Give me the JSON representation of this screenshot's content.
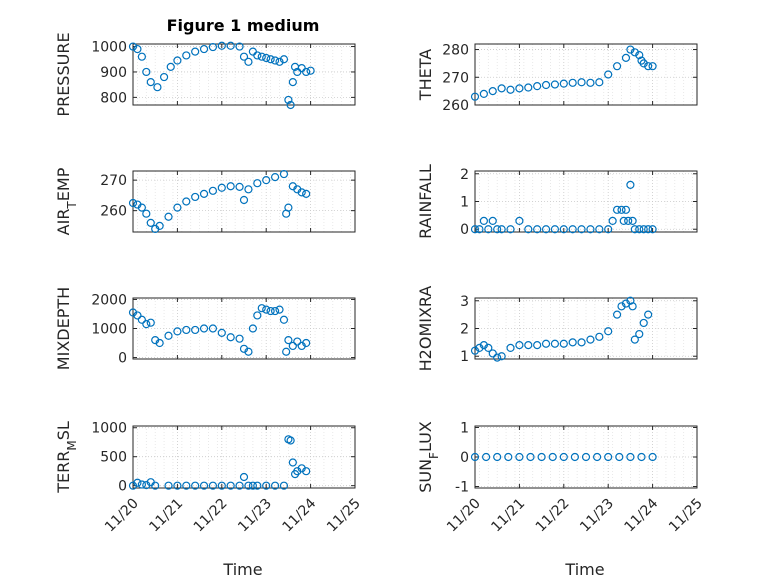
{
  "figure": {
    "title": "Figure 1 medium",
    "xlabel": "Time",
    "marker_color": "#0072BD"
  },
  "chart_data": [
    {
      "type": "scatter",
      "ylabel": "PRESSURE",
      "ylim": [
        770,
        1010
      ],
      "yticks": [
        800,
        900,
        1000
      ],
      "ytick_labels": [
        "800",
        "900",
        "1000"
      ],
      "xlim": [
        0,
        5
      ],
      "xticks": [
        0,
        1,
        2,
        3,
        4,
        5
      ],
      "xtick_labels": [],
      "grid": true,
      "x": [
        0.0,
        0.1,
        0.2,
        0.3,
        0.4,
        0.55,
        0.7,
        0.85,
        1.0,
        1.2,
        1.4,
        1.6,
        1.8,
        2.0,
        2.2,
        2.4,
        2.5,
        2.6,
        2.7,
        2.8,
        2.9,
        3.0,
        3.1,
        3.2,
        3.3,
        3.4,
        3.5,
        3.55,
        3.6,
        3.65,
        3.7,
        3.8,
        3.9,
        4.0
      ],
      "y": [
        1000,
        990,
        960,
        900,
        860,
        840,
        880,
        920,
        945,
        965,
        980,
        990,
        998,
        1003,
        1003,
        1000,
        960,
        940,
        980,
        965,
        960,
        955,
        950,
        945,
        940,
        950,
        790,
        770,
        860,
        920,
        900,
        915,
        900,
        905
      ]
    },
    {
      "type": "scatter",
      "ylabel": "THETA",
      "ylim": [
        260,
        282
      ],
      "yticks": [
        260,
        270,
        280
      ],
      "ytick_labels": [
        "260",
        "270",
        "280"
      ],
      "xlim": [
        0,
        5
      ],
      "xticks": [
        0,
        1,
        2,
        3,
        4,
        5
      ],
      "xtick_labels": [],
      "grid": true,
      "x": [
        0.0,
        0.2,
        0.4,
        0.6,
        0.8,
        1.0,
        1.2,
        1.4,
        1.6,
        1.8,
        2.0,
        2.2,
        2.4,
        2.6,
        2.8,
        3.0,
        3.2,
        3.4,
        3.5,
        3.6,
        3.7,
        3.75,
        3.8,
        3.9,
        4.0
      ],
      "y": [
        263,
        264,
        265,
        266,
        265.5,
        266,
        266.3,
        266.8,
        267.2,
        267.4,
        267.7,
        268,
        268.2,
        268,
        268.2,
        271,
        274,
        277,
        280,
        279,
        278,
        276,
        275,
        274,
        274
      ]
    },
    {
      "type": "scatter",
      "ylabel": "AIR_TEMP",
      "ylim": [
        253,
        273
      ],
      "yticks": [
        260,
        270
      ],
      "ytick_labels": [
        "260",
        "270"
      ],
      "xlim": [
        0,
        5
      ],
      "xticks": [
        0,
        1,
        2,
        3,
        4,
        5
      ],
      "xtick_labels": [],
      "grid": true,
      "x": [
        0.0,
        0.1,
        0.2,
        0.3,
        0.4,
        0.5,
        0.6,
        0.8,
        1.0,
        1.2,
        1.4,
        1.6,
        1.8,
        2.0,
        2.2,
        2.4,
        2.5,
        2.6,
        2.8,
        3.0,
        3.2,
        3.4,
        3.45,
        3.5,
        3.6,
        3.7,
        3.8,
        3.9
      ],
      "y": [
        262.5,
        262,
        261,
        259,
        256,
        254,
        255,
        258,
        261,
        263,
        264.5,
        265.5,
        266.5,
        267.5,
        268,
        267.8,
        263.5,
        267,
        269,
        270,
        271,
        272,
        259,
        261,
        268,
        267,
        266,
        265.5
      ]
    },
    {
      "type": "scatter",
      "ylabel": "RAINFALL",
      "ylim": [
        -0.1,
        2.1
      ],
      "yticks": [
        0,
        1,
        2
      ],
      "ytick_labels": [
        "0",
        "1",
        "2"
      ],
      "xlim": [
        0,
        5
      ],
      "xticks": [
        0,
        1,
        2,
        3,
        4,
        5
      ],
      "xtick_labels": [],
      "grid": true,
      "x": [
        0.0,
        0.1,
        0.2,
        0.3,
        0.4,
        0.5,
        0.6,
        0.8,
        1.0,
        1.2,
        1.4,
        1.6,
        1.8,
        2.0,
        2.2,
        2.4,
        2.6,
        2.8,
        3.0,
        3.1,
        3.2,
        3.3,
        3.35,
        3.4,
        3.45,
        3.5,
        3.55,
        3.6,
        3.7,
        3.8,
        3.9,
        4.0
      ],
      "y": [
        0,
        0,
        0.3,
        0,
        0.3,
        0,
        0,
        0,
        0.3,
        0,
        0,
        0,
        0,
        0,
        0,
        0,
        0,
        0,
        0,
        0.3,
        0.7,
        0.7,
        0.3,
        0.7,
        0.3,
        1.6,
        0.3,
        0,
        0,
        0,
        0,
        0
      ]
    },
    {
      "type": "scatter",
      "ylabel": "MIXDEPTH",
      "ylim": [
        -50,
        2050
      ],
      "yticks": [
        0,
        1000,
        2000
      ],
      "ytick_labels": [
        "0",
        "1000",
        "2000"
      ],
      "xlim": [
        0,
        5
      ],
      "xticks": [
        0,
        1,
        2,
        3,
        4,
        5
      ],
      "xtick_labels": [],
      "grid": true,
      "x": [
        0.0,
        0.1,
        0.2,
        0.3,
        0.4,
        0.5,
        0.6,
        0.8,
        1.0,
        1.2,
        1.4,
        1.6,
        1.8,
        2.0,
        2.2,
        2.4,
        2.5,
        2.6,
        2.7,
        2.8,
        2.9,
        3.0,
        3.1,
        3.2,
        3.3,
        3.4,
        3.45,
        3.5,
        3.6,
        3.7,
        3.8,
        3.9
      ],
      "y": [
        1550,
        1450,
        1300,
        1150,
        1200,
        600,
        500,
        750,
        900,
        950,
        950,
        1000,
        1000,
        850,
        700,
        650,
        300,
        200,
        1000,
        1450,
        1700,
        1650,
        1600,
        1600,
        1650,
        1300,
        200,
        600,
        400,
        550,
        400,
        500
      ]
    },
    {
      "type": "scatter",
      "ylabel": "H2OMIXRA",
      "ylim": [
        0.9,
        3.1
      ],
      "yticks": [
        1,
        2,
        3
      ],
      "ytick_labels": [
        "1",
        "2",
        "3"
      ],
      "xlim": [
        0,
        5
      ],
      "xticks": [
        0,
        1,
        2,
        3,
        4,
        5
      ],
      "xtick_labels": [],
      "grid": true,
      "x": [
        0.0,
        0.1,
        0.2,
        0.3,
        0.4,
        0.5,
        0.6,
        0.8,
        1.0,
        1.2,
        1.4,
        1.6,
        1.8,
        2.0,
        2.2,
        2.4,
        2.6,
        2.8,
        3.0,
        3.2,
        3.3,
        3.4,
        3.5,
        3.55,
        3.6,
        3.7,
        3.8,
        3.9
      ],
      "y": [
        1.2,
        1.3,
        1.4,
        1.3,
        1.1,
        0.95,
        1.0,
        1.3,
        1.4,
        1.4,
        1.4,
        1.45,
        1.45,
        1.45,
        1.5,
        1.5,
        1.6,
        1.7,
        1.9,
        2.5,
        2.8,
        2.9,
        3.0,
        2.8,
        1.6,
        1.8,
        2.2,
        2.5
      ]
    },
    {
      "type": "scatter",
      "ylabel": "TERR_MSL",
      "ylim": [
        -40,
        1030
      ],
      "yticks": [
        0,
        500,
        1000
      ],
      "ytick_labels": [
        "0",
        "500",
        "1000"
      ],
      "xlim": [
        0,
        5
      ],
      "xticks": [
        0,
        1,
        2,
        3,
        4,
        5
      ],
      "xtick_labels": [],
      "grid": true,
      "x": [
        0.0,
        0.1,
        0.2,
        0.3,
        0.4,
        0.5,
        0.8,
        1.0,
        1.2,
        1.4,
        1.6,
        1.8,
        2.0,
        2.2,
        2.4,
        2.5,
        2.6,
        2.7,
        2.8,
        3.0,
        3.2,
        3.4,
        3.5,
        3.55,
        3.6,
        3.65,
        3.7,
        3.8,
        3.9
      ],
      "y": [
        0,
        50,
        20,
        10,
        60,
        0,
        0,
        0,
        0,
        0,
        0,
        0,
        0,
        0,
        0,
        150,
        0,
        0,
        0,
        0,
        0,
        0,
        800,
        780,
        400,
        200,
        250,
        300,
        250
      ]
    },
    {
      "type": "scatter",
      "ylabel": "SUN_FLUX",
      "ylim": [
        -1.05,
        1.05
      ],
      "yticks": [
        -1,
        0,
        1
      ],
      "ytick_labels": [
        "-1",
        "0",
        "1"
      ],
      "xlim": [
        0,
        5
      ],
      "xticks": [
        0,
        1,
        2,
        3,
        4,
        5
      ],
      "xtick_labels": [],
      "grid": true,
      "x": [
        0.0,
        0.25,
        0.5,
        0.75,
        1.0,
        1.25,
        1.5,
        1.75,
        2.0,
        2.25,
        2.5,
        2.75,
        3.0,
        3.25,
        3.5,
        3.75,
        4.0
      ],
      "y": [
        0,
        0,
        0,
        0,
        0,
        0,
        0,
        0,
        0,
        0,
        0,
        0,
        0,
        0,
        0,
        0,
        0
      ]
    }
  ],
  "bottom_xtick_labels": [
    "11/20",
    "11/21",
    "11/22",
    "11/23",
    "11/24",
    "11/25"
  ]
}
